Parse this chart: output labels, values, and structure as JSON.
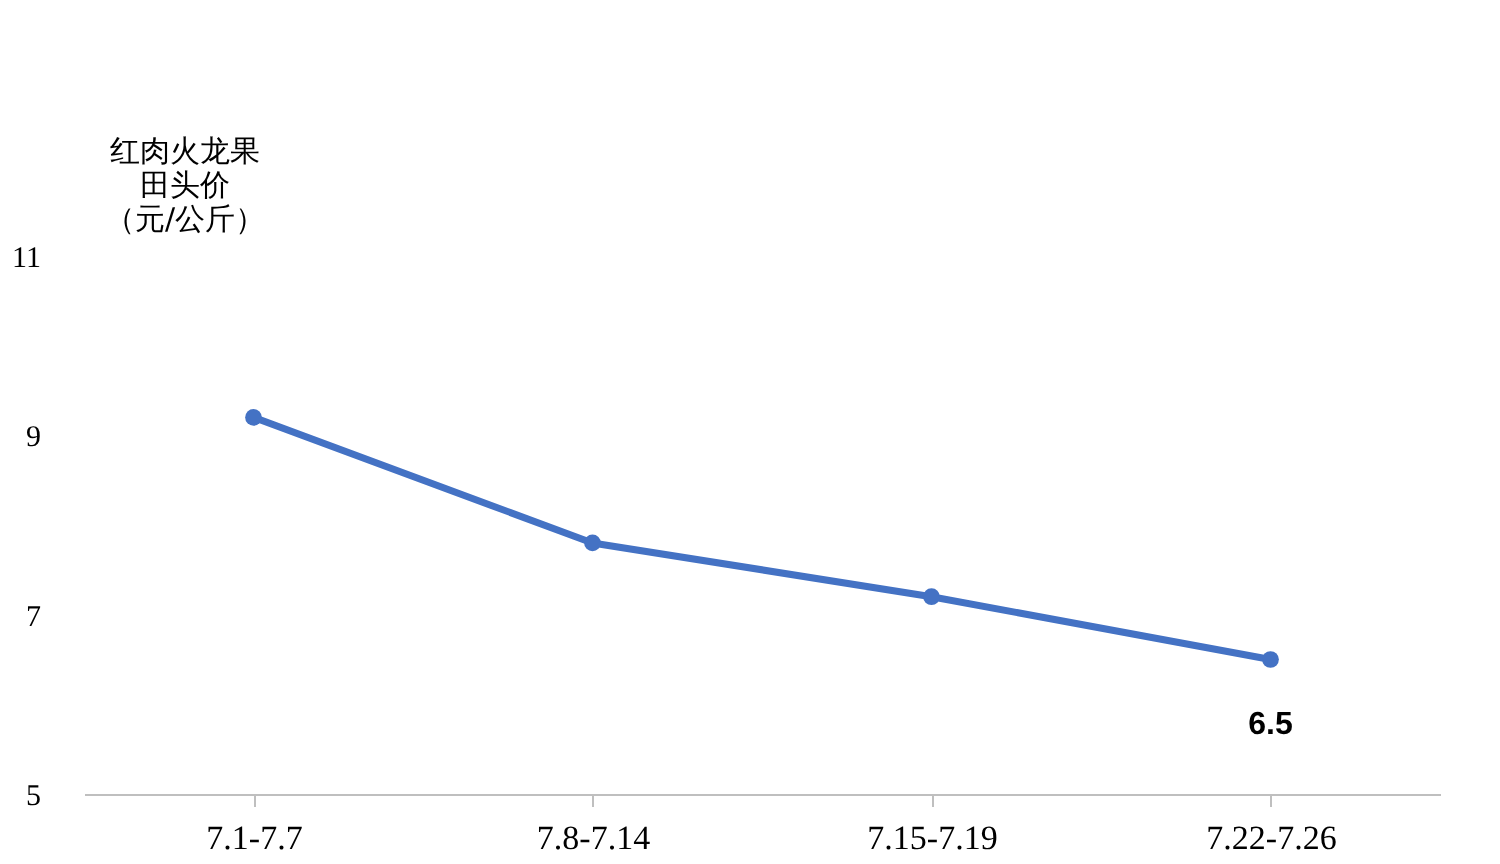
{
  "chart_data": {
    "type": "line",
    "ylabel": "红肉火龙果田头价（元/公斤）",
    "categories": [
      "7.1-7.7",
      "7.8-7.14",
      "7.15-7.19",
      "7.22-7.26"
    ],
    "series": [
      {
        "color": "#4472c4",
        "values": [
          9.2,
          7.8,
          7.2,
          6.5
        ],
        "value_labels": [
          null,
          null,
          null,
          "6.5"
        ]
      }
    ],
    "ylim": [
      5,
      11
    ],
    "yticks": [
      5,
      7,
      9,
      11
    ],
    "grid": false,
    "marker": "circle",
    "line_style": "solid"
  }
}
